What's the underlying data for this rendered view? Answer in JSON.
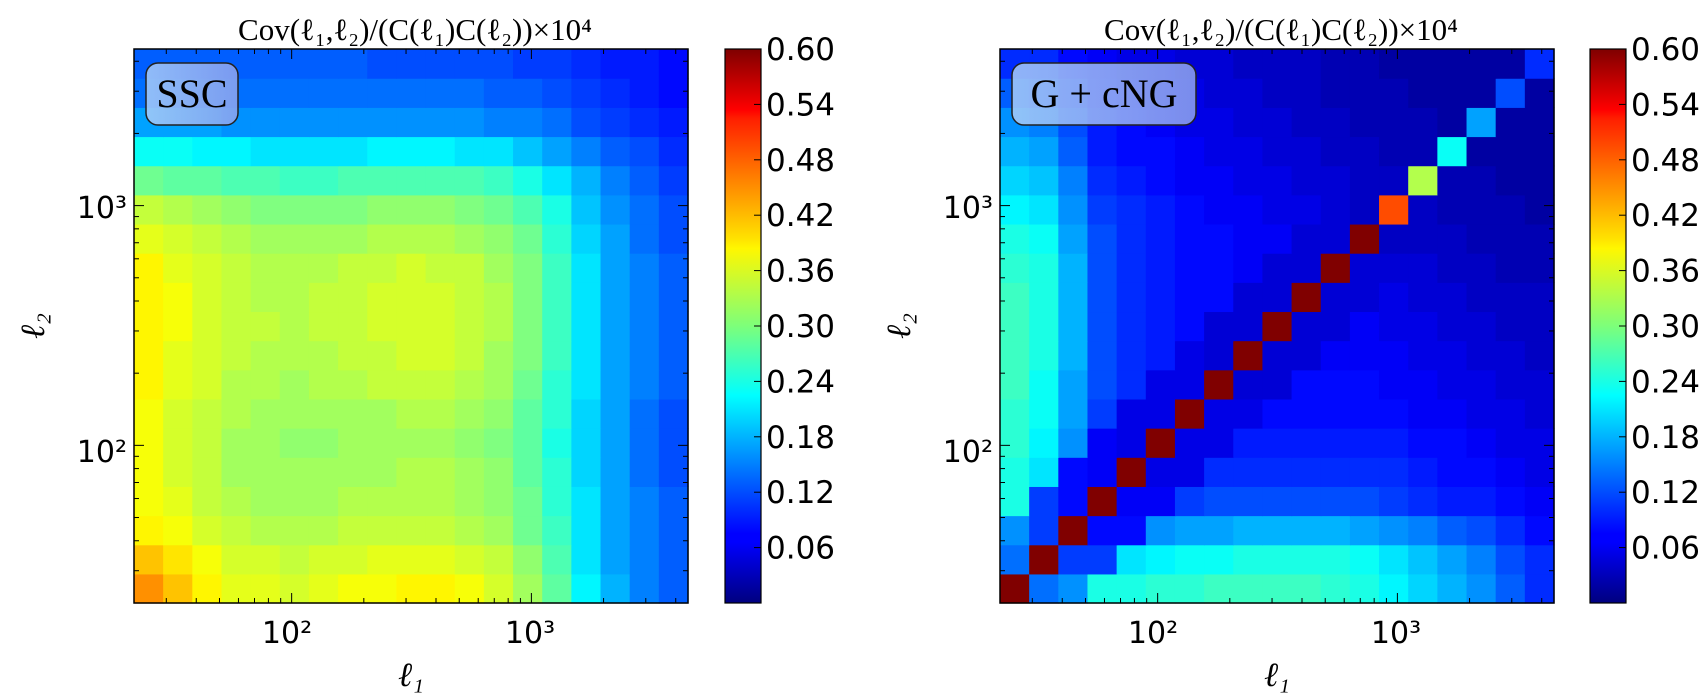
{
  "chart_data": [
    {
      "type": "heatmap",
      "title": "Cov(ℓ₁,ℓ₂)/(C(ℓ₁)C(ℓ₂))×10⁴",
      "badge": "SSC",
      "xlabel": "ℓ₁",
      "ylabel": "ℓ₂",
      "x_scale": "log",
      "y_scale": "log",
      "xlim": [
        22,
        4500
      ],
      "ylim": [
        22,
        4500
      ],
      "x_ticks": [
        {
          "value": 100,
          "label": "10²"
        },
        {
          "value": 1000,
          "label": "10³"
        }
      ],
      "y_ticks": [
        {
          "value": 100,
          "label": "10²"
        },
        {
          "value": 1000,
          "label": "10³"
        }
      ],
      "n_bins": 19,
      "values": [
        [
          0.44,
          0.41,
          0.38,
          0.36,
          0.36,
          0.35,
          0.36,
          0.37,
          0.37,
          0.38,
          0.38,
          0.37,
          0.35,
          0.32,
          0.28,
          0.22,
          0.18,
          0.15,
          0.13
        ],
        [
          0.41,
          0.39,
          0.37,
          0.35,
          0.35,
          0.34,
          0.35,
          0.35,
          0.36,
          0.36,
          0.36,
          0.35,
          0.34,
          0.31,
          0.27,
          0.21,
          0.17,
          0.15,
          0.13
        ],
        [
          0.38,
          0.37,
          0.35,
          0.34,
          0.33,
          0.33,
          0.33,
          0.34,
          0.34,
          0.34,
          0.34,
          0.33,
          0.32,
          0.29,
          0.26,
          0.21,
          0.17,
          0.15,
          0.13
        ],
        [
          0.37,
          0.36,
          0.34,
          0.33,
          0.32,
          0.32,
          0.32,
          0.33,
          0.33,
          0.33,
          0.33,
          0.32,
          0.31,
          0.29,
          0.25,
          0.21,
          0.17,
          0.15,
          0.13
        ],
        [
          0.37,
          0.35,
          0.34,
          0.32,
          0.32,
          0.32,
          0.32,
          0.32,
          0.32,
          0.33,
          0.33,
          0.32,
          0.31,
          0.28,
          0.25,
          0.2,
          0.17,
          0.14,
          0.12
        ],
        [
          0.37,
          0.35,
          0.34,
          0.32,
          0.32,
          0.31,
          0.31,
          0.32,
          0.32,
          0.32,
          0.32,
          0.31,
          0.3,
          0.28,
          0.24,
          0.2,
          0.17,
          0.14,
          0.12
        ],
        [
          0.37,
          0.35,
          0.34,
          0.33,
          0.32,
          0.32,
          0.32,
          0.32,
          0.32,
          0.33,
          0.33,
          0.32,
          0.31,
          0.28,
          0.25,
          0.2,
          0.17,
          0.14,
          0.12
        ],
        [
          0.38,
          0.36,
          0.35,
          0.33,
          0.33,
          0.32,
          0.33,
          0.33,
          0.34,
          0.34,
          0.34,
          0.33,
          0.32,
          0.29,
          0.25,
          0.21,
          0.17,
          0.15,
          0.13
        ],
        [
          0.38,
          0.36,
          0.35,
          0.34,
          0.33,
          0.33,
          0.33,
          0.34,
          0.34,
          0.35,
          0.35,
          0.34,
          0.32,
          0.3,
          0.26,
          0.21,
          0.17,
          0.15,
          0.13
        ],
        [
          0.38,
          0.37,
          0.35,
          0.34,
          0.34,
          0.33,
          0.34,
          0.34,
          0.35,
          0.35,
          0.35,
          0.34,
          0.33,
          0.3,
          0.26,
          0.21,
          0.17,
          0.15,
          0.13
        ],
        [
          0.38,
          0.37,
          0.35,
          0.34,
          0.33,
          0.33,
          0.34,
          0.34,
          0.35,
          0.35,
          0.35,
          0.34,
          0.33,
          0.3,
          0.26,
          0.21,
          0.17,
          0.15,
          0.13
        ],
        [
          0.38,
          0.36,
          0.35,
          0.34,
          0.33,
          0.33,
          0.33,
          0.34,
          0.34,
          0.35,
          0.34,
          0.34,
          0.32,
          0.3,
          0.26,
          0.21,
          0.17,
          0.15,
          0.13
        ],
        [
          0.36,
          0.35,
          0.34,
          0.33,
          0.32,
          0.32,
          0.32,
          0.32,
          0.33,
          0.33,
          0.33,
          0.32,
          0.31,
          0.29,
          0.25,
          0.2,
          0.17,
          0.14,
          0.12
        ],
        [
          0.34,
          0.33,
          0.32,
          0.31,
          0.3,
          0.3,
          0.3,
          0.3,
          0.31,
          0.31,
          0.31,
          0.3,
          0.29,
          0.27,
          0.24,
          0.19,
          0.16,
          0.14,
          0.12
        ],
        [
          0.29,
          0.28,
          0.28,
          0.27,
          0.27,
          0.26,
          0.26,
          0.27,
          0.27,
          0.27,
          0.27,
          0.27,
          0.26,
          0.24,
          0.21,
          0.18,
          0.15,
          0.13,
          0.11
        ],
        [
          0.23,
          0.23,
          0.22,
          0.22,
          0.21,
          0.21,
          0.21,
          0.21,
          0.22,
          0.22,
          0.22,
          0.21,
          0.21,
          0.19,
          0.17,
          0.15,
          0.13,
          0.12,
          0.1
        ],
        [
          0.17,
          0.17,
          0.17,
          0.16,
          0.16,
          0.16,
          0.16,
          0.16,
          0.16,
          0.16,
          0.16,
          0.16,
          0.15,
          0.15,
          0.14,
          0.12,
          0.11,
          0.1,
          0.09
        ],
        [
          0.14,
          0.14,
          0.14,
          0.14,
          0.14,
          0.14,
          0.14,
          0.14,
          0.14,
          0.14,
          0.14,
          0.14,
          0.13,
          0.13,
          0.12,
          0.11,
          0.1,
          0.09,
          0.08
        ],
        [
          0.13,
          0.13,
          0.13,
          0.13,
          0.13,
          0.13,
          0.13,
          0.13,
          0.12,
          0.12,
          0.12,
          0.12,
          0.12,
          0.11,
          0.11,
          0.1,
          0.09,
          0.09,
          0.08
        ]
      ],
      "colorbar": {
        "min": 0.0,
        "max": 0.6,
        "ticks": [
          "0.06",
          "0.12",
          "0.18",
          "0.24",
          "0.30",
          "0.36",
          "0.42",
          "0.48",
          "0.54",
          "0.60"
        ],
        "colormap": "jet"
      }
    },
    {
      "type": "heatmap",
      "title": "Cov(ℓ₁,ℓ₂)/(C(ℓ₁)C(ℓ₂))×10⁴",
      "badge": "G + cNG",
      "xlabel": "ℓ₁",
      "ylabel": "ℓ₂",
      "x_scale": "log",
      "y_scale": "log",
      "xlim": [
        22,
        4500
      ],
      "ylim": [
        22,
        4500
      ],
      "x_ticks": [
        {
          "value": 100,
          "label": "10²"
        },
        {
          "value": 1000,
          "label": "10³"
        }
      ],
      "y_ticks": [
        {
          "value": 100,
          "label": "10²"
        },
        {
          "value": 1000,
          "label": "10³"
        }
      ],
      "n_bins": 19,
      "values": [
        [
          0.6,
          0.14,
          0.16,
          0.24,
          0.24,
          0.25,
          0.25,
          0.26,
          0.26,
          0.26,
          0.26,
          0.25,
          0.24,
          0.22,
          0.2,
          0.18,
          0.16,
          0.13,
          0.1
        ],
        [
          0.14,
          0.6,
          0.11,
          0.11,
          0.21,
          0.22,
          0.23,
          0.23,
          0.24,
          0.24,
          0.24,
          0.24,
          0.23,
          0.21,
          0.19,
          0.17,
          0.15,
          0.12,
          0.1
        ],
        [
          0.16,
          0.11,
          0.6,
          0.08,
          0.08,
          0.16,
          0.17,
          0.17,
          0.18,
          0.18,
          0.18,
          0.18,
          0.17,
          0.16,
          0.15,
          0.13,
          0.12,
          0.1,
          0.08
        ],
        [
          0.24,
          0.11,
          0.08,
          0.6,
          0.07,
          0.07,
          0.11,
          0.12,
          0.12,
          0.12,
          0.12,
          0.12,
          0.12,
          0.11,
          0.1,
          0.09,
          0.09,
          0.08,
          0.07
        ],
        [
          0.24,
          0.21,
          0.08,
          0.07,
          0.6,
          0.06,
          0.06,
          0.1,
          0.1,
          0.1,
          0.1,
          0.1,
          0.1,
          0.1,
          0.09,
          0.08,
          0.08,
          0.07,
          0.06
        ],
        [
          0.25,
          0.22,
          0.16,
          0.07,
          0.06,
          0.6,
          0.06,
          0.06,
          0.09,
          0.09,
          0.09,
          0.09,
          0.09,
          0.09,
          0.08,
          0.08,
          0.07,
          0.06,
          0.06
        ],
        [
          0.25,
          0.23,
          0.17,
          0.11,
          0.06,
          0.06,
          0.6,
          0.06,
          0.06,
          0.08,
          0.08,
          0.08,
          0.08,
          0.08,
          0.07,
          0.07,
          0.06,
          0.06,
          0.05
        ],
        [
          0.26,
          0.23,
          0.17,
          0.12,
          0.1,
          0.06,
          0.06,
          0.6,
          0.05,
          0.05,
          0.08,
          0.08,
          0.08,
          0.07,
          0.07,
          0.06,
          0.06,
          0.05,
          0.05
        ],
        [
          0.26,
          0.24,
          0.18,
          0.12,
          0.1,
          0.09,
          0.06,
          0.05,
          0.6,
          0.05,
          0.05,
          0.07,
          0.07,
          0.07,
          0.06,
          0.06,
          0.05,
          0.05,
          0.04
        ],
        [
          0.26,
          0.24,
          0.18,
          0.12,
          0.1,
          0.09,
          0.08,
          0.05,
          0.05,
          0.6,
          0.05,
          0.05,
          0.07,
          0.06,
          0.06,
          0.05,
          0.05,
          0.04,
          0.04
        ],
        [
          0.26,
          0.24,
          0.18,
          0.12,
          0.1,
          0.09,
          0.08,
          0.08,
          0.05,
          0.05,
          0.6,
          0.05,
          0.05,
          0.06,
          0.05,
          0.05,
          0.04,
          0.04,
          0.04
        ],
        [
          0.25,
          0.24,
          0.18,
          0.12,
          0.1,
          0.09,
          0.08,
          0.08,
          0.07,
          0.05,
          0.05,
          0.6,
          0.05,
          0.05,
          0.05,
          0.04,
          0.04,
          0.03,
          0.03
        ],
        [
          0.24,
          0.23,
          0.17,
          0.12,
          0.1,
          0.09,
          0.08,
          0.08,
          0.07,
          0.07,
          0.05,
          0.05,
          0.6,
          0.04,
          0.04,
          0.04,
          0.03,
          0.03,
          0.03
        ],
        [
          0.22,
          0.21,
          0.16,
          0.11,
          0.1,
          0.09,
          0.08,
          0.07,
          0.07,
          0.06,
          0.06,
          0.05,
          0.04,
          0.48,
          0.04,
          0.03,
          0.03,
          0.03,
          0.02
        ],
        [
          0.2,
          0.19,
          0.15,
          0.1,
          0.09,
          0.08,
          0.07,
          0.07,
          0.06,
          0.06,
          0.05,
          0.05,
          0.04,
          0.04,
          0.33,
          0.03,
          0.03,
          0.02,
          0.02
        ],
        [
          0.18,
          0.17,
          0.13,
          0.09,
          0.08,
          0.08,
          0.07,
          0.06,
          0.06,
          0.05,
          0.05,
          0.04,
          0.04,
          0.03,
          0.03,
          0.23,
          0.02,
          0.02,
          0.02
        ],
        [
          0.16,
          0.15,
          0.12,
          0.09,
          0.08,
          0.07,
          0.06,
          0.06,
          0.05,
          0.05,
          0.04,
          0.04,
          0.03,
          0.03,
          0.03,
          0.02,
          0.17,
          0.02,
          0.02
        ],
        [
          0.13,
          0.12,
          0.1,
          0.08,
          0.07,
          0.06,
          0.06,
          0.05,
          0.05,
          0.04,
          0.04,
          0.03,
          0.03,
          0.03,
          0.02,
          0.02,
          0.02,
          0.12,
          0.02
        ],
        [
          0.1,
          0.1,
          0.08,
          0.07,
          0.06,
          0.06,
          0.05,
          0.05,
          0.04,
          0.04,
          0.04,
          0.03,
          0.03,
          0.02,
          0.02,
          0.02,
          0.02,
          0.02,
          0.1
        ]
      ],
      "colorbar": {
        "min": 0.0,
        "max": 0.6,
        "ticks": [
          "0.06",
          "0.12",
          "0.18",
          "0.24",
          "0.30",
          "0.36",
          "0.42",
          "0.48",
          "0.54",
          "0.60"
        ],
        "colormap": "jet"
      }
    }
  ]
}
